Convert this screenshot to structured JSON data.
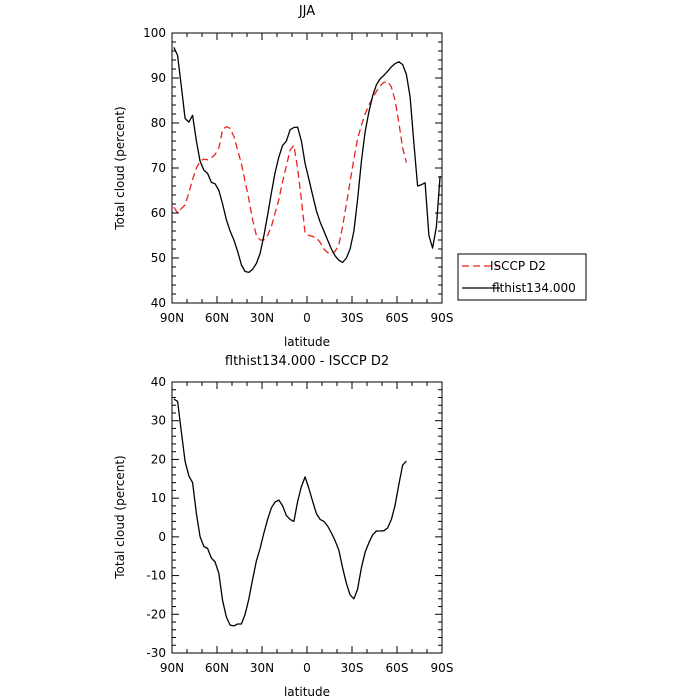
{
  "chart_data": [
    {
      "type": "line",
      "title": "JJA",
      "xlabel": "latitude",
      "ylabel": "Total cloud (percent)",
      "x_tick_labels": [
        "90N",
        "60N",
        "30N",
        "0",
        "30S",
        "60S",
        "90S"
      ],
      "x_ticks": [
        90,
        60,
        30,
        0,
        -30,
        -60,
        -90
      ],
      "xlim": [
        90,
        -90
      ],
      "ylim": [
        40,
        100
      ],
      "y_ticks": [
        40,
        50,
        60,
        70,
        80,
        90,
        100
      ],
      "legend_position": "outside-right",
      "series": [
        {
          "name": "ISCCP D2",
          "color": "#e8231f",
          "dash": "dashed",
          "x": [
            88.75,
            86.25,
            83.75,
            81.25,
            78.75,
            76.25,
            73.75,
            71.25,
            68.75,
            66.25,
            63.75,
            61.25,
            58.75,
            56.25,
            53.75,
            51.25,
            48.75,
            46.25,
            43.75,
            41.25,
            38.75,
            36.25,
            33.75,
            31.25,
            28.75,
            26.25,
            23.75,
            21.25,
            18.75,
            16.25,
            13.75,
            11.25,
            8.75,
            6.25,
            3.75,
            1.25,
            -1.25,
            -3.75,
            -6.25,
            -8.75,
            -11.25,
            -13.75,
            -16.25,
            -18.75,
            -21.25,
            -23.75,
            -26.25,
            -28.75,
            -31.25,
            -33.75,
            -36.25,
            -38.75,
            -41.25,
            -43.75,
            -46.25,
            -48.75,
            -51.25,
            -53.75,
            -56.25,
            -58.75,
            -61.25,
            -63.75,
            -66.25
          ],
          "y": [
            61.3,
            60.0,
            61.0,
            61.8,
            64.5,
            67.5,
            70.0,
            71.5,
            72.0,
            71.8,
            72.3,
            73.0,
            74.5,
            78.5,
            79.2,
            78.8,
            77.0,
            74.0,
            71.0,
            67.0,
            63.0,
            58.5,
            55.0,
            54.0,
            54.0,
            55.0,
            57.0,
            60.0,
            63.0,
            67.0,
            70.5,
            74.0,
            75.0,
            70.0,
            63.0,
            55.5,
            55.0,
            54.8,
            54.5,
            53.5,
            52.0,
            51.2,
            51.0,
            51.5,
            53.0,
            57.0,
            62.0,
            67.0,
            72.0,
            76.5,
            79.5,
            82.0,
            84.0,
            85.5,
            87.0,
            88.3,
            89.0,
            89.2,
            88.0,
            85.0,
            80.0,
            74.5,
            71.2
          ]
        },
        {
          "name": "flthist134.000",
          "color": "#000000",
          "dash": "solid",
          "x": [
            88.75,
            86.25,
            83.75,
            81.25,
            78.75,
            76.25,
            73.75,
            71.25,
            68.75,
            66.25,
            63.75,
            61.25,
            58.75,
            56.25,
            53.75,
            51.25,
            48.75,
            46.25,
            43.75,
            41.25,
            38.75,
            36.25,
            33.75,
            31.25,
            28.75,
            26.25,
            23.75,
            21.25,
            18.75,
            16.25,
            13.75,
            11.25,
            8.75,
            6.25,
            3.75,
            1.25,
            -1.25,
            -3.75,
            -6.25,
            -8.75,
            -11.25,
            -13.75,
            -16.25,
            -18.75,
            -21.25,
            -23.75,
            -26.25,
            -28.75,
            -31.25,
            -33.75,
            -36.25,
            -38.75,
            -41.25,
            -43.75,
            -46.25,
            -48.75,
            -51.25,
            -53.75,
            -56.25,
            -58.75,
            -61.25,
            -63.75,
            -66.25,
            -68.75,
            -71.25,
            -73.75,
            -76.25,
            -78.75,
            -81.25,
            -83.75,
            -86.25,
            -88.75
          ],
          "y": [
            96.8,
            95.0,
            88.0,
            81.0,
            80.2,
            81.7,
            76.0,
            71.5,
            69.5,
            68.8,
            66.8,
            66.5,
            65.0,
            62.0,
            58.5,
            56.0,
            54.0,
            51.5,
            48.5,
            47.0,
            46.8,
            47.5,
            48.8,
            51.0,
            55.0,
            59.5,
            64.5,
            69.0,
            72.5,
            75.0,
            76.0,
            78.5,
            79.0,
            79.1,
            76.0,
            71.0,
            67.5,
            64.0,
            60.5,
            58.0,
            56.0,
            54.0,
            52.0,
            50.5,
            49.5,
            49.0,
            50.0,
            52.0,
            56.0,
            63.0,
            71.5,
            78.0,
            82.5,
            86.0,
            88.5,
            89.8,
            90.6,
            91.5,
            92.5,
            93.2,
            93.6,
            93.0,
            90.8,
            85.8,
            75.5,
            66.0,
            66.3,
            66.7,
            55.0,
            52.2,
            57.0,
            68.2
          ]
        }
      ]
    },
    {
      "type": "line",
      "title": "flthist134.000 - ISCCP D2",
      "xlabel": "latitude",
      "ylabel": "Total cloud (percent)",
      "x_tick_labels": [
        "90N",
        "60N",
        "30N",
        "0",
        "30S",
        "60S",
        "90S"
      ],
      "x_ticks": [
        90,
        60,
        30,
        0,
        -30,
        -60,
        -90
      ],
      "xlim": [
        90,
        -90
      ],
      "ylim": [
        -30,
        40
      ],
      "y_ticks": [
        -30,
        -20,
        -10,
        0,
        10,
        20,
        30,
        40
      ],
      "series": [
        {
          "color": "#000000",
          "dash": "solid",
          "x": [
            88.75,
            86.25,
            83.75,
            81.25,
            78.75,
            76.25,
            73.75,
            71.25,
            68.75,
            66.25,
            63.75,
            61.25,
            58.75,
            56.25,
            53.75,
            51.25,
            48.75,
            46.25,
            43.75,
            41.25,
            38.75,
            36.25,
            33.75,
            31.25,
            28.75,
            26.25,
            23.75,
            21.25,
            18.75,
            16.25,
            13.75,
            11.25,
            8.75,
            6.25,
            3.75,
            1.25,
            -1.25,
            -3.75,
            -6.25,
            -8.75,
            -11.25,
            -13.75,
            -16.25,
            -18.75,
            -21.25,
            -23.75,
            -26.25,
            -28.75,
            -31.25,
            -33.75,
            -36.25,
            -38.75,
            -41.25,
            -43.75,
            -46.25,
            -48.75,
            -51.25,
            -53.75,
            -56.25,
            -58.75,
            -61.25,
            -63.75,
            -66.25
          ],
          "y": [
            35.6,
            35.0,
            27.0,
            19.5,
            15.7,
            14.0,
            6.0,
            0.0,
            -2.5,
            -3.0,
            -5.5,
            -6.5,
            -9.5,
            -16.5,
            -20.7,
            -22.8,
            -23.0,
            -22.5,
            -22.5,
            -20.0,
            -16.0,
            -11.0,
            -6.2,
            -3.0,
            1.0,
            4.5,
            7.5,
            9.0,
            9.5,
            8.0,
            5.5,
            4.5,
            4.0,
            9.1,
            13.0,
            15.5,
            12.5,
            9.2,
            6.0,
            4.5,
            4.0,
            2.8,
            1.0,
            -1.0,
            -3.5,
            -8.0,
            -12.0,
            -15.0,
            -16.0,
            -13.5,
            -8.0,
            -4.0,
            -1.5,
            0.5,
            1.5,
            1.5,
            1.6,
            2.3,
            4.5,
            8.2,
            13.6,
            18.5,
            19.6
          ]
        }
      ]
    }
  ]
}
